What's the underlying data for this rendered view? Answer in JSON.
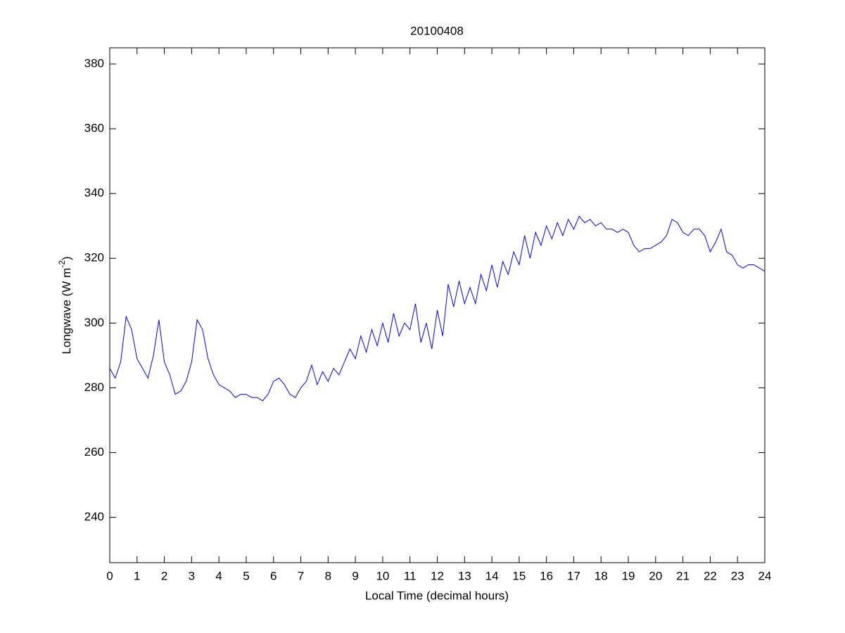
{
  "chart_data": {
    "type": "line",
    "title": "20100408",
    "xlabel": "Local Time (decimal hours)",
    "ylabel": {
      "text": "Longwave (W m",
      "superscript": "-2",
      "suffix": ")"
    },
    "x": [
      0,
      0.2,
      0.4,
      0.6,
      0.8,
      1,
      1.2,
      1.4,
      1.6,
      1.8,
      2,
      2.2,
      2.4,
      2.6,
      2.8,
      3,
      3.2,
      3.4,
      3.6,
      3.8,
      4,
      4.2,
      4.4,
      4.6,
      4.8,
      5,
      5.2,
      5.4,
      5.6,
      5.8,
      6,
      6.2,
      6.4,
      6.6,
      6.8,
      7,
      7.2,
      7.4,
      7.6,
      7.8,
      8,
      8.2,
      8.4,
      8.6,
      8.8,
      9,
      9.2,
      9.4,
      9.6,
      9.8,
      10,
      10.2,
      10.4,
      10.6,
      10.8,
      11,
      11.2,
      11.4,
      11.6,
      11.8,
      12,
      12.2,
      12.4,
      12.6,
      12.8,
      13,
      13.2,
      13.4,
      13.6,
      13.8,
      14,
      14.2,
      14.4,
      14.6,
      14.8,
      15,
      15.2,
      15.4,
      15.6,
      15.8,
      16,
      16.2,
      16.4,
      16.6,
      16.8,
      17,
      17.2,
      17.4,
      17.6,
      17.8,
      18,
      18.2,
      18.4,
      18.6,
      18.8,
      19,
      19.2,
      19.4,
      19.6,
      19.8,
      20,
      20.2,
      20.4,
      20.6,
      20.8,
      21,
      21.2,
      21.4,
      21.6,
      21.8,
      22,
      22.2,
      22.4,
      22.6,
      22.8,
      23,
      23.2,
      23.4,
      23.6,
      23.8,
      24
    ],
    "series": [
      {
        "color": "#0000ff",
        "values": [
          286,
          283,
          288,
          302,
          298,
          289,
          286,
          283,
          290,
          301,
          288,
          284,
          278,
          279,
          282,
          288,
          301,
          298,
          289,
          284,
          281,
          280,
          279,
          277,
          278,
          278,
          277,
          277,
          276,
          278,
          282,
          283,
          281,
          278,
          277,
          280,
          282,
          287,
          281,
          285,
          282,
          286,
          284,
          288,
          292,
          289,
          296,
          291,
          298,
          293,
          300,
          294,
          303,
          296,
          300,
          298,
          306,
          294,
          300,
          292,
          304,
          296,
          312,
          305,
          313,
          306,
          311,
          306,
          315,
          310,
          318,
          311,
          319,
          315,
          322,
          318,
          327,
          320,
          328,
          324,
          330,
          326,
          331,
          327,
          332,
          329,
          333,
          331,
          332,
          330,
          331,
          329,
          329,
          328,
          329,
          328,
          324,
          322,
          323,
          323,
          324,
          325,
          327,
          332,
          331,
          328,
          327,
          329,
          329,
          327,
          322,
          325,
          329,
          322,
          321,
          318,
          317,
          318,
          318,
          317,
          316
        ]
      }
    ],
    "xlim": [
      0,
      24
    ],
    "ylim": [
      226,
      385
    ],
    "xticks": [
      0,
      1,
      2,
      3,
      4,
      5,
      6,
      7,
      8,
      9,
      10,
      11,
      12,
      13,
      14,
      15,
      16,
      17,
      18,
      19,
      20,
      21,
      22,
      23,
      24
    ],
    "yticks": [
      240,
      260,
      280,
      300,
      320,
      340,
      360,
      380
    ]
  }
}
